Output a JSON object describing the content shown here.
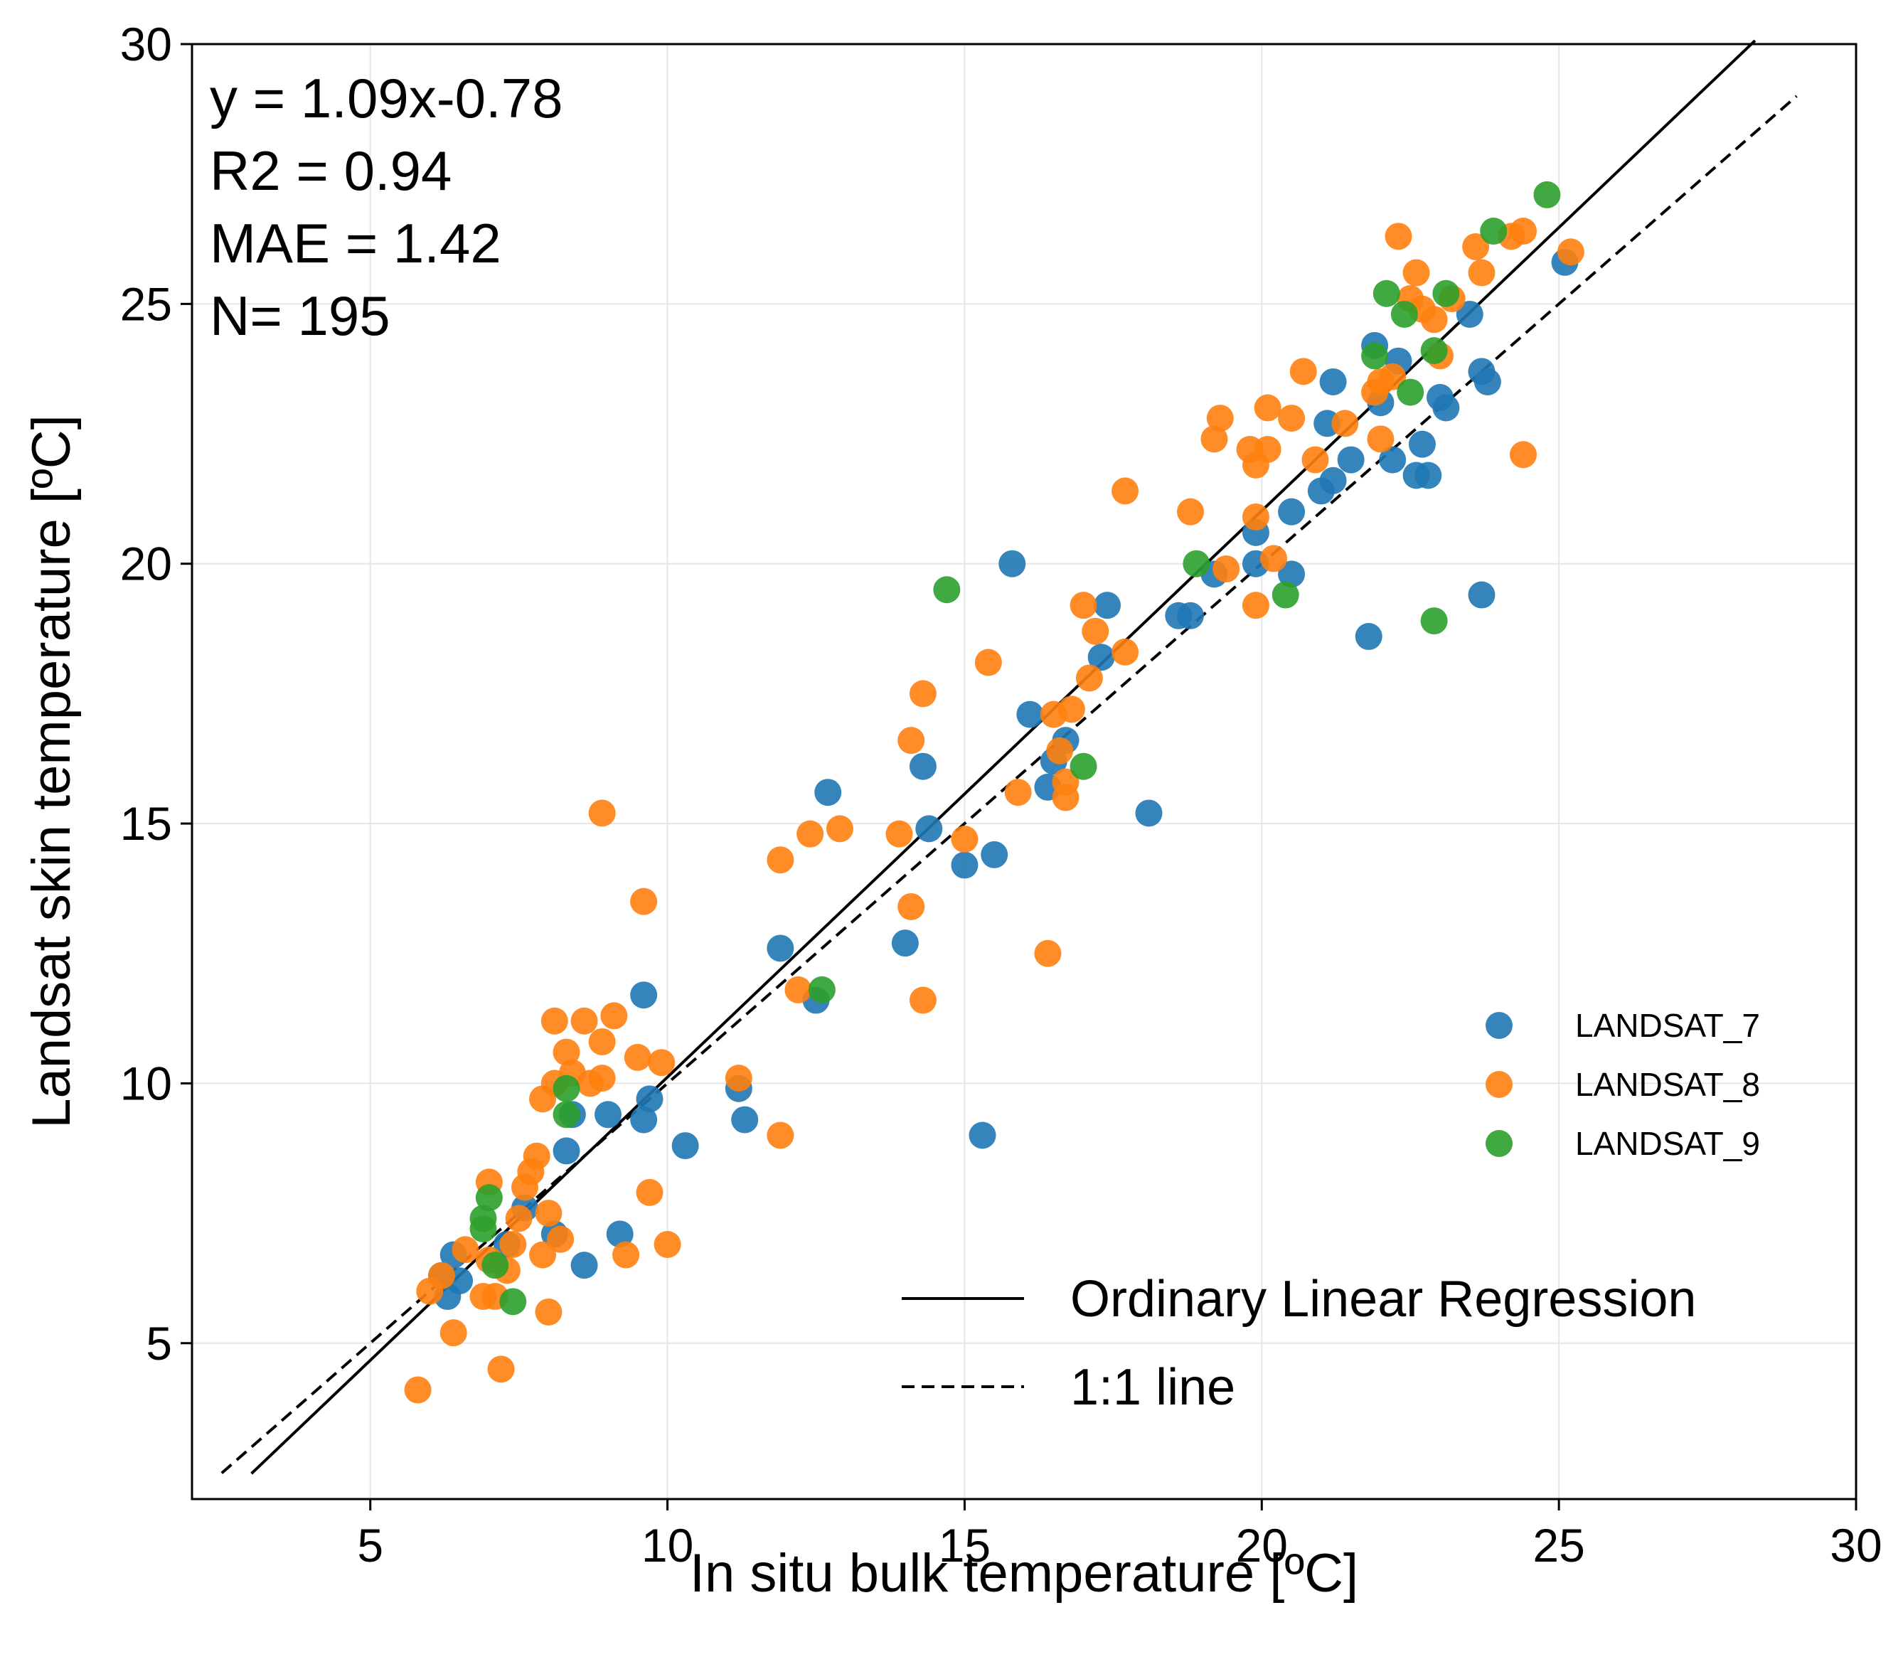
{
  "chart_data": {
    "type": "scatter",
    "title": "",
    "xlabel": "In situ bulk temperature [ºC]",
    "ylabel": "Landsat skin temperature [ºC]",
    "xlim": [
      2,
      30
    ],
    "ylim": [
      2,
      30
    ],
    "xticks": [
      5,
      10,
      15,
      20,
      25,
      30
    ],
    "yticks": [
      5,
      10,
      15,
      20,
      25,
      30
    ],
    "grid": true,
    "annotation_lines": [
      "y = 1.09x-0.78",
      "R2 = 0.94",
      "MAE = 1.42",
      "N= 195"
    ],
    "series": [
      {
        "name": "LANDSAT_7",
        "color": "#1f77b4",
        "points": [
          [
            6.2,
            6.3
          ],
          [
            6.4,
            6.7
          ],
          [
            6.3,
            5.9
          ],
          [
            6.5,
            6.2
          ],
          [
            7.3,
            6.9
          ],
          [
            7.6,
            7.6
          ],
          [
            8.1,
            7.1
          ],
          [
            8.3,
            8.7
          ],
          [
            8.6,
            6.5
          ],
          [
            8.4,
            9.4
          ],
          [
            9.0,
            9.4
          ],
          [
            9.2,
            7.1
          ],
          [
            9.6,
            9.3
          ],
          [
            9.7,
            9.7
          ],
          [
            9.6,
            11.7
          ],
          [
            10.3,
            8.8
          ],
          [
            11.2,
            9.9
          ],
          [
            11.3,
            9.3
          ],
          [
            11.9,
            12.6
          ],
          [
            12.5,
            11.6
          ],
          [
            12.7,
            15.6
          ],
          [
            14.0,
            12.7
          ],
          [
            14.3,
            16.1
          ],
          [
            14.4,
            14.9
          ],
          [
            15.0,
            14.2
          ],
          [
            15.3,
            9.0
          ],
          [
            15.5,
            14.4
          ],
          [
            15.8,
            20.0
          ],
          [
            16.1,
            17.1
          ],
          [
            16.4,
            15.7
          ],
          [
            16.5,
            16.2
          ],
          [
            16.7,
            16.6
          ],
          [
            17.3,
            18.2
          ],
          [
            17.4,
            19.2
          ],
          [
            18.1,
            15.2
          ],
          [
            18.6,
            19.0
          ],
          [
            18.8,
            19.0
          ],
          [
            19.2,
            19.8
          ],
          [
            19.9,
            20.6
          ],
          [
            19.9,
            20.0
          ],
          [
            20.5,
            21.0
          ],
          [
            20.5,
            19.8
          ],
          [
            21.0,
            21.4
          ],
          [
            21.2,
            21.6
          ],
          [
            21.5,
            22.0
          ],
          [
            21.1,
            22.7
          ],
          [
            21.2,
            23.5
          ],
          [
            21.8,
            18.6
          ],
          [
            21.9,
            24.2
          ],
          [
            22.0,
            23.1
          ],
          [
            22.2,
            22.0
          ],
          [
            22.3,
            23.9
          ],
          [
            22.6,
            21.7
          ],
          [
            22.7,
            22.3
          ],
          [
            22.8,
            21.7
          ],
          [
            23.0,
            23.2
          ],
          [
            23.1,
            23.0
          ],
          [
            23.5,
            24.8
          ],
          [
            23.7,
            23.7
          ],
          [
            23.7,
            19.4
          ],
          [
            23.8,
            23.5
          ],
          [
            25.1,
            25.8
          ]
        ]
      },
      {
        "name": "LANDSAT_8",
        "color": "#ff7f0e",
        "points": [
          [
            5.8,
            4.1
          ],
          [
            6.0,
            6.0
          ],
          [
            6.2,
            6.3
          ],
          [
            6.4,
            5.2
          ],
          [
            6.6,
            6.8
          ],
          [
            6.9,
            5.9
          ],
          [
            7.0,
            8.1
          ],
          [
            7.0,
            6.6
          ],
          [
            7.1,
            5.9
          ],
          [
            7.2,
            4.5
          ],
          [
            7.3,
            6.4
          ],
          [
            7.4,
            6.9
          ],
          [
            7.5,
            7.4
          ],
          [
            7.6,
            8.0
          ],
          [
            7.7,
            8.3
          ],
          [
            7.8,
            8.6
          ],
          [
            7.9,
            9.7
          ],
          [
            7.9,
            6.7
          ],
          [
            8.0,
            7.5
          ],
          [
            8.0,
            5.6
          ],
          [
            8.1,
            11.2
          ],
          [
            8.1,
            10.0
          ],
          [
            8.2,
            7.0
          ],
          [
            8.3,
            10.6
          ],
          [
            8.4,
            10.2
          ],
          [
            8.6,
            11.2
          ],
          [
            8.7,
            10.0
          ],
          [
            8.9,
            10.1
          ],
          [
            8.9,
            10.8
          ],
          [
            8.9,
            15.2
          ],
          [
            9.1,
            11.3
          ],
          [
            9.3,
            6.7
          ],
          [
            9.5,
            10.5
          ],
          [
            9.6,
            13.5
          ],
          [
            9.7,
            7.9
          ],
          [
            9.9,
            10.4
          ],
          [
            10.0,
            6.9
          ],
          [
            11.2,
            10.1
          ],
          [
            11.9,
            9.0
          ],
          [
            11.9,
            14.3
          ],
          [
            12.2,
            11.8
          ],
          [
            12.4,
            14.8
          ],
          [
            12.9,
            14.9
          ],
          [
            13.9,
            14.8
          ],
          [
            14.1,
            16.6
          ],
          [
            14.1,
            13.4
          ],
          [
            14.3,
            17.5
          ],
          [
            14.3,
            11.6
          ],
          [
            15.0,
            14.7
          ],
          [
            15.4,
            18.1
          ],
          [
            15.9,
            15.6
          ],
          [
            16.4,
            12.5
          ],
          [
            16.5,
            17.1
          ],
          [
            16.6,
            16.4
          ],
          [
            16.7,
            15.5
          ],
          [
            16.7,
            15.8
          ],
          [
            16.8,
            17.2
          ],
          [
            17.0,
            19.2
          ],
          [
            17.1,
            17.8
          ],
          [
            17.2,
            18.7
          ],
          [
            17.7,
            18.3
          ],
          [
            17.7,
            21.4
          ],
          [
            18.8,
            21.0
          ],
          [
            19.2,
            22.4
          ],
          [
            19.3,
            22.8
          ],
          [
            19.4,
            19.9
          ],
          [
            19.8,
            22.2
          ],
          [
            19.9,
            21.9
          ],
          [
            19.9,
            20.9
          ],
          [
            19.9,
            19.2
          ],
          [
            20.1,
            23.0
          ],
          [
            20.1,
            22.2
          ],
          [
            20.2,
            20.1
          ],
          [
            20.5,
            22.8
          ],
          [
            20.7,
            23.7
          ],
          [
            20.9,
            22.0
          ],
          [
            21.4,
            22.7
          ],
          [
            21.9,
            23.3
          ],
          [
            22.0,
            23.5
          ],
          [
            22.0,
            22.4
          ],
          [
            22.2,
            23.6
          ],
          [
            22.3,
            26.3
          ],
          [
            22.5,
            25.1
          ],
          [
            22.6,
            25.6
          ],
          [
            22.7,
            24.9
          ],
          [
            22.9,
            24.7
          ],
          [
            23.0,
            24.0
          ],
          [
            23.2,
            25.1
          ],
          [
            23.6,
            26.1
          ],
          [
            23.7,
            25.6
          ],
          [
            24.2,
            26.3
          ],
          [
            24.4,
            26.4
          ],
          [
            24.4,
            22.1
          ],
          [
            25.2,
            26.0
          ]
        ]
      },
      {
        "name": "LANDSAT_9",
        "color": "#2ca02c",
        "points": [
          [
            6.9,
            7.2
          ],
          [
            6.9,
            7.4
          ],
          [
            7.0,
            7.8
          ],
          [
            7.1,
            6.5
          ],
          [
            7.4,
            5.8
          ],
          [
            8.3,
            9.4
          ],
          [
            8.3,
            9.9
          ],
          [
            12.6,
            11.8
          ],
          [
            14.7,
            19.5
          ],
          [
            17.0,
            16.1
          ],
          [
            18.9,
            20.0
          ],
          [
            20.4,
            19.4
          ],
          [
            21.9,
            24.0
          ],
          [
            22.1,
            25.2
          ],
          [
            22.4,
            24.8
          ],
          [
            22.5,
            23.3
          ],
          [
            22.9,
            24.1
          ],
          [
            22.9,
            18.9
          ],
          [
            23.1,
            25.2
          ],
          [
            23.9,
            26.4
          ],
          [
            24.8,
            27.1
          ]
        ]
      }
    ],
    "lines": [
      {
        "name": "Ordinary Linear Regression",
        "style": "solid",
        "color": "#000000",
        "slope": 1.09,
        "intercept": -0.78,
        "x_range": [
          3.0,
          28.3
        ]
      },
      {
        "name": "1:1 line",
        "style": "dashed",
        "color": "#000000",
        "slope": 1.0,
        "intercept": 0.0,
        "x_range": [
          2.5,
          29.0
        ]
      }
    ]
  }
}
